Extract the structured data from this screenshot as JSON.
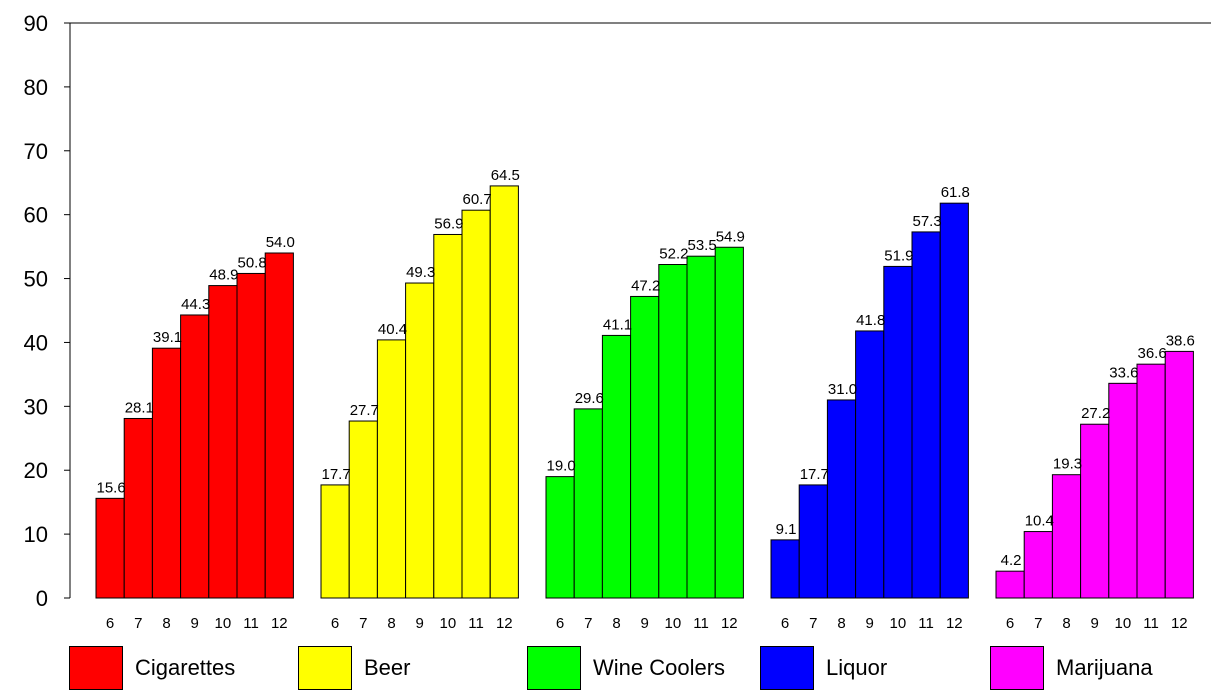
{
  "chart_data": {
    "type": "bar",
    "title": "",
    "xlabel": "",
    "ylabel": "",
    "ylim": [
      0,
      90
    ],
    "yticks": [
      0,
      10,
      20,
      30,
      40,
      50,
      60,
      70,
      80,
      90
    ],
    "grid": false,
    "legend_position": "bottom",
    "categories": [
      "6",
      "7",
      "8",
      "9",
      "10",
      "11",
      "12"
    ],
    "series": [
      {
        "name": "Cigarettes",
        "color": "#ff0000",
        "values": [
          15.6,
          28.1,
          39.1,
          44.3,
          48.9,
          50.8,
          54.0
        ],
        "labels": [
          "15.6",
          "28.1",
          "39.1",
          "44.3",
          "48.9",
          "50.8",
          "54.0"
        ]
      },
      {
        "name": "Beer",
        "color": "#ffff00",
        "values": [
          17.7,
          27.7,
          40.4,
          49.3,
          56.9,
          60.7,
          64.5
        ],
        "labels": [
          "17.7",
          "27.7",
          "40.4",
          "49.3",
          "56.9",
          "60.7",
          "64.5"
        ]
      },
      {
        "name": "Wine Coolers",
        "color": "#00ff00",
        "values": [
          19.0,
          29.6,
          41.1,
          47.2,
          52.2,
          53.5,
          54.9
        ],
        "labels": [
          "19.0",
          "29.6",
          "41.1",
          "47.2",
          "52.2",
          "53.5",
          "54.9"
        ]
      },
      {
        "name": "Liquor",
        "color": "#0000ff",
        "values": [
          9.1,
          17.7,
          31.0,
          41.8,
          51.9,
          57.3,
          61.8
        ],
        "labels": [
          "9.1",
          "17.7",
          "31.0",
          "41.8",
          "51.9",
          "57.3",
          "61.8"
        ]
      },
      {
        "name": "Marijuana",
        "color": "#ff00ff",
        "values": [
          4.2,
          10.4,
          19.3,
          27.2,
          33.6,
          36.6,
          38.6
        ],
        "labels": [
          "4.2",
          "10.4",
          "19.3",
          "27.2",
          "33.6",
          "36.6",
          "38.6"
        ]
      }
    ]
  }
}
